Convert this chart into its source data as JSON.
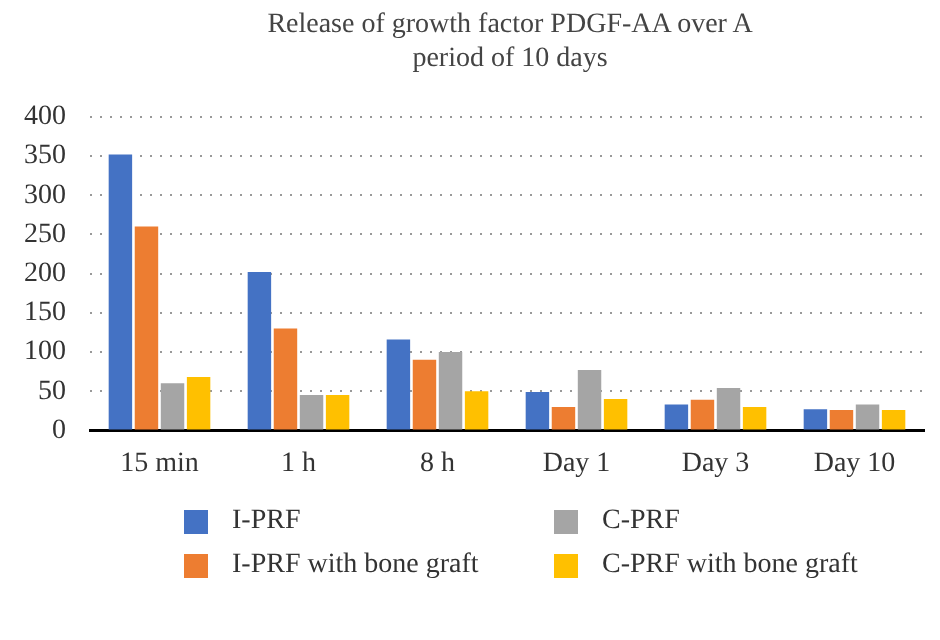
{
  "chart_data": {
    "type": "bar",
    "title": "Release of growth factor PDGF-AA over A period of 10 days",
    "categories": [
      "15 min",
      "1 h",
      "8 h",
      "Day 1",
      "Day 3",
      "Day 10"
    ],
    "series": [
      {
        "name": "I-PRF",
        "color": "#4472c4",
        "values": [
          352,
          202,
          116,
          49,
          33,
          27
        ]
      },
      {
        "name": "I-PRF with bone graft",
        "color": "#ed7d31",
        "values": [
          260,
          130,
          90,
          30,
          39,
          26
        ]
      },
      {
        "name": "C-PRF",
        "color": "#a5a5a5",
        "values": [
          60,
          45,
          100,
          77,
          54,
          33
        ]
      },
      {
        "name": "C-PRF with bone graft",
        "color": "#ffc000",
        "values": [
          68,
          45,
          50,
          40,
          30,
          26
        ]
      }
    ],
    "ylim": [
      0,
      400
    ],
    "yticks": [
      0,
      50,
      100,
      150,
      200,
      250,
      300,
      350,
      400
    ],
    "grid": "y",
    "legend": "bottom"
  }
}
